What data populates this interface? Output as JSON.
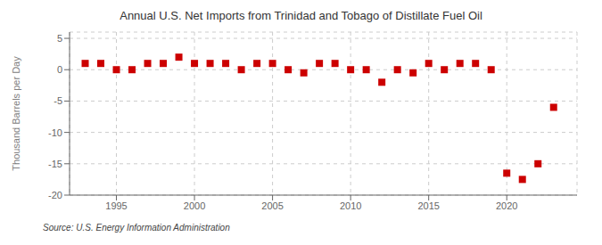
{
  "chart_data": {
    "type": "scatter",
    "title": "Annual U.S. Net Imports from Trinidad and Tobago of Distillate Fuel Oil",
    "ylabel": "Thousand Barrels per Day",
    "annotations": [
      "Source: U.S. Energy Information Administration"
    ],
    "x": [
      1993,
      1994,
      1995,
      1996,
      1997,
      1998,
      1999,
      2000,
      2001,
      2002,
      2003,
      2004,
      2005,
      2006,
      2007,
      2008,
      2009,
      2010,
      2011,
      2012,
      2013,
      2014,
      2015,
      2016,
      2017,
      2018,
      2019,
      2020,
      2021,
      2022,
      2023
    ],
    "values": [
      1.0,
      1.0,
      0.0,
      0.0,
      1.0,
      1.0,
      2.0,
      1.0,
      1.0,
      1.0,
      0.0,
      1.0,
      1.0,
      0.0,
      -0.5,
      1.0,
      1.0,
      0.0,
      0.0,
      -2.0,
      0.0,
      -0.5,
      1.0,
      0.0,
      1.0,
      1.0,
      0.0,
      -16.5,
      -17.5,
      -15.0,
      -6.0
    ],
    "color": "#cc0000",
    "marker": "square",
    "xlim": [
      1992.0,
      2024.5
    ],
    "xticks": [
      1995,
      2000,
      2005,
      2010,
      2015,
      2020
    ],
    "ylim": [
      -20,
      6
    ],
    "yticks": [
      -20,
      -15,
      -10,
      -5,
      0,
      5
    ],
    "grid": true
  }
}
